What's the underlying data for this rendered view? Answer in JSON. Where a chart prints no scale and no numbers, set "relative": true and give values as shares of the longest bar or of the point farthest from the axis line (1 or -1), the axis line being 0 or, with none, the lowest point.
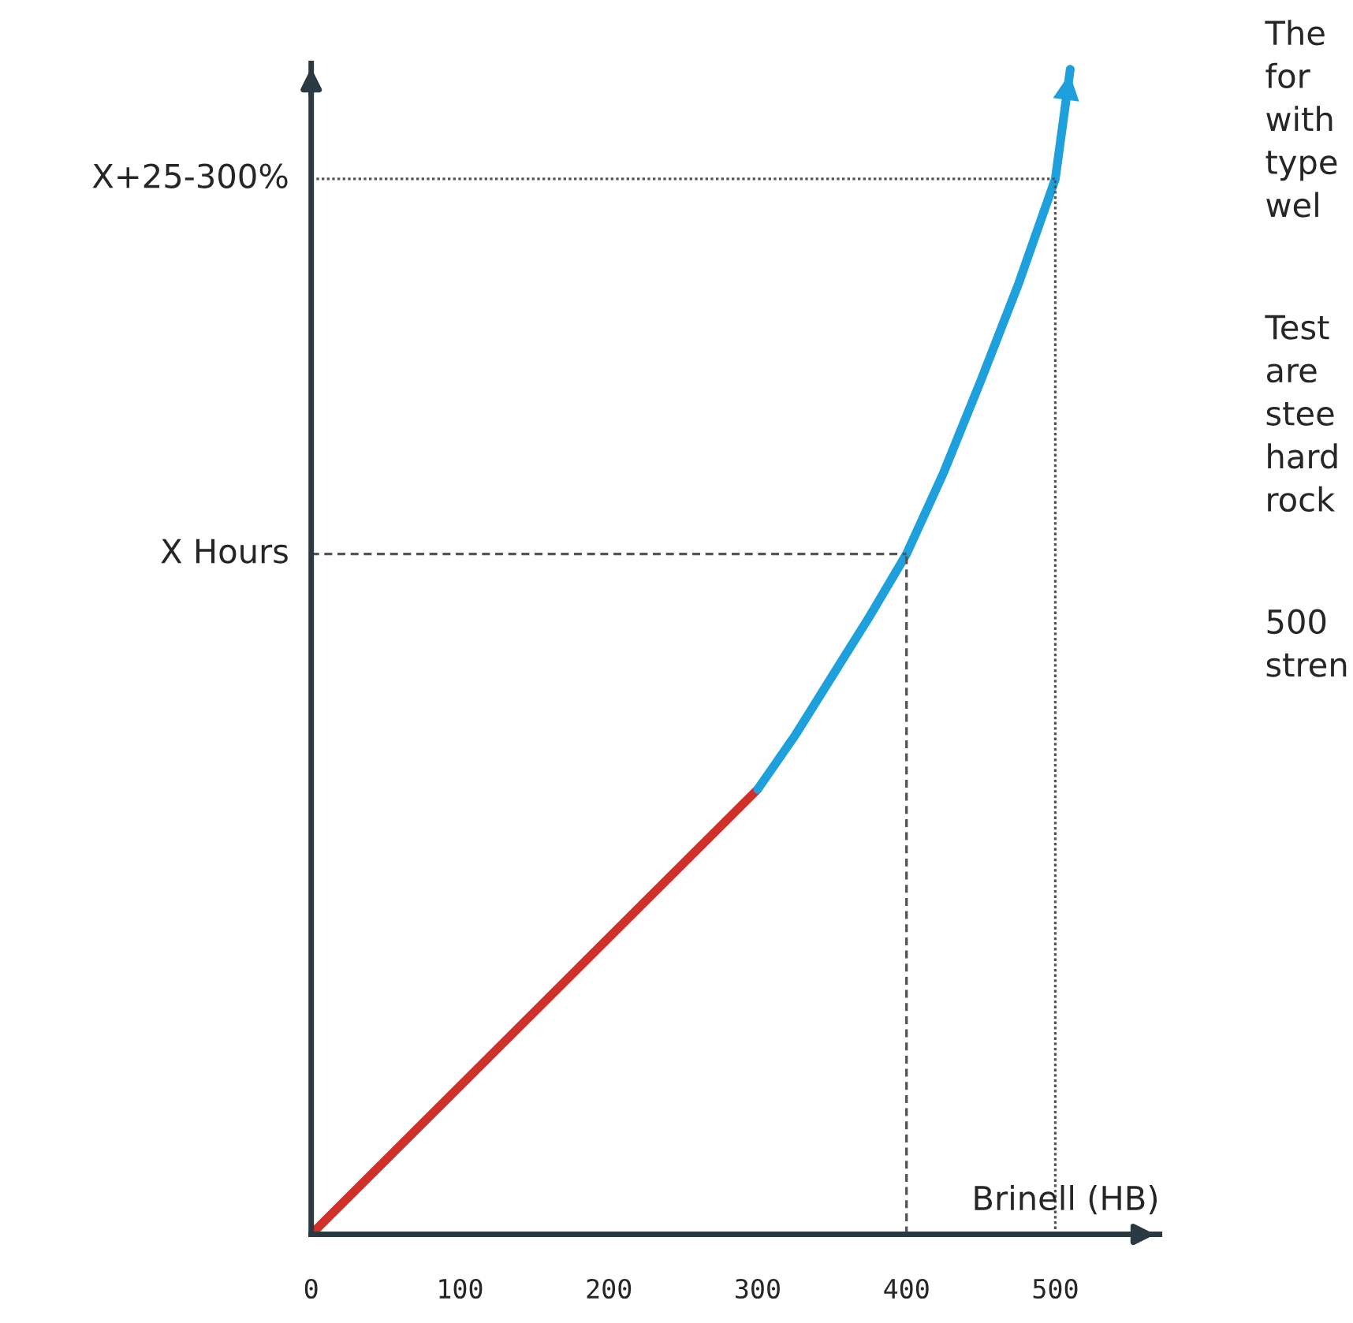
{
  "chart_data": {
    "type": "line",
    "relative": true,
    "xlabel": "Brinell (HB)",
    "xlim": [
      0,
      570
    ],
    "xticks": [
      0,
      100,
      200,
      300,
      400,
      500
    ],
    "series": [
      {
        "color": "#d0302a",
        "x": [
          0,
          300
        ],
        "values": [
          0,
          0.382
        ]
      },
      {
        "color": "#1ea0dc",
        "x": [
          300,
          325,
          350,
          375,
          400,
          425,
          450,
          475,
          500,
          510
        ],
        "values": [
          0.382,
          0.428,
          0.479,
          0.53,
          0.584,
          0.654,
          0.733,
          0.815,
          0.906,
          1.0
        ]
      }
    ],
    "annotations": [
      "The\nfor\nwith\ntype\nwel",
      "Test\nare\nstee\nhard\nrock",
      "500\nstren"
    ],
    "ref_lines": [
      {
        "axis": "y",
        "value": 0.584,
        "label": "X Hours",
        "line_style": "dashed"
      },
      {
        "axis": "x",
        "value": 400,
        "line_style": "dashed"
      },
      {
        "axis": "y",
        "value": 0.906,
        "label": "X+25-300%",
        "line_style": "dotted"
      },
      {
        "axis": "x",
        "value": 500,
        "line_style": "dotted"
      }
    ],
    "grid": false,
    "legend": false,
    "marker": "none",
    "line_style": "solid"
  }
}
